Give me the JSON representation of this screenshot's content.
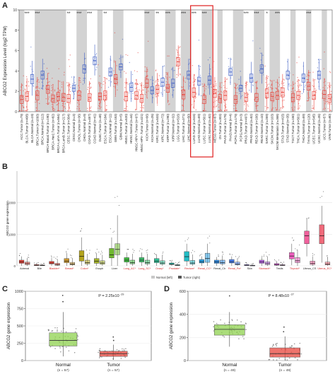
{
  "panels": {
    "A": "A",
    "B": "B",
    "C": "C",
    "D": "D"
  },
  "colors": {
    "tumor": "#e8453c",
    "normal": "#3f5fc4",
    "stripe": "#d3d3d3",
    "ggreen": "#8fd14f"
  },
  "chart_data": [
    {
      "id": "A",
      "type": "box",
      "ylabel": "ABCG2 Expression Level (log2 TPM)",
      "ylim": [
        0,
        10
      ],
      "yticks": [
        "0",
        "2",
        "4",
        "6",
        "8",
        "10"
      ],
      "categories": [
        "ACC.Tumor (n=79)",
        "BLCA.Tumor (n=408)",
        "BLCA.Normal (n=19)",
        "BRCA.Tumor (n=1093)",
        "BRCA.Normal (n=112)",
        "BRCA-Basal.Tumor (n=190)",
        "BRCA-Her2.Tumor (n=82)",
        "BRCA-LumA.Tumor (n=564)",
        "BRCA-LumB.Tumor (n=217)",
        "CESC.Tumor (n=304)",
        "CESC.Normal (n=3)",
        "CHOL.Tumor (n=36)",
        "CHOL.Normal (n=9)",
        "COAD.Tumor (n=457)",
        "COAD.Normal (n=41)",
        "DLBC.Tumor (n=48)",
        "ESCA.Tumor (n=184)",
        "ESCA.Normal (n=11)",
        "GBM.Tumor (n=153)",
        "GBM.Normal (n=5)",
        "HNSC.Tumor (n=520)",
        "HNSC.Normal (n=44)",
        "HNSC-HPV+.Tumor (n=97)",
        "HNSC-HPV-.Tumor (n=421)",
        "KICH.Tumor (n=66)",
        "KICH.Normal (n=25)",
        "KIRC.Tumor (n=533)",
        "KIRC.Normal (n=72)",
        "KIRP.Tumor (n=290)",
        "KIRP.Normal (n=32)",
        "LGG.Tumor (n=516)",
        "LIHC.Tumor (n=371)",
        "LIHC.Normal (n=50)",
        "LUAD.Tumor (n=515)",
        "LUAD.Normal (n=59)",
        "LUSC.Tumor (n=501)",
        "LUSC.Normal (n=52)",
        "MESO.Tumor (n=87)",
        "OV.Tumor (n=303)",
        "PAAD.Tumor (n=178)",
        "PAAD.Normal (n=4)",
        "PCPG.Tumor (n=179)",
        "PCPG.Normal (n=3)",
        "PRAD.Tumor (n=497)",
        "PRAD.Normal (n=52)",
        "READ.Tumor (n=166)",
        "READ.Normal (n=10)",
        "SARC.Tumor (n=259)",
        "SKCM.Tumor (n=103)",
        "SKCM.Metastasis (n=368)",
        "STAD.Tumor (n=415)",
        "STAD.Normal (n=35)",
        "TGCT.Tumor (n=150)",
        "THCA.Tumor (n=501)",
        "THCA.Normal (n=59)",
        "THYM.Tumor (n=120)",
        "UCEC.Tumor (n=545)",
        "UCEC.Normal (n=35)",
        "UCS.Tumor (n=57)",
        "UVM.Tumor (n=80)"
      ],
      "groups": [
        "tumor",
        "tumor",
        "normal",
        "tumor",
        "normal",
        "tumor",
        "tumor",
        "tumor",
        "tumor",
        "tumor",
        "normal",
        "tumor",
        "normal",
        "tumor",
        "normal",
        "tumor",
        "tumor",
        "normal",
        "tumor",
        "normal",
        "tumor",
        "normal",
        "tumor",
        "tumor",
        "tumor",
        "normal",
        "tumor",
        "normal",
        "tumor",
        "normal",
        "tumor",
        "tumor",
        "normal",
        "tumor",
        "normal",
        "tumor",
        "normal",
        "tumor",
        "tumor",
        "tumor",
        "normal",
        "tumor",
        "normal",
        "tumor",
        "normal",
        "tumor",
        "normal",
        "tumor",
        "tumor",
        "tumor",
        "tumor",
        "normal",
        "tumor",
        "tumor",
        "normal",
        "tumor",
        "tumor",
        "normal",
        "tumor",
        "tumor"
      ],
      "medians": [
        1.2,
        1.5,
        3.2,
        1.6,
        3.6,
        2.2,
        1.3,
        1.5,
        1.4,
        1.3,
        2.3,
        1.6,
        4.2,
        1.4,
        5.0,
        1.5,
        1.6,
        3.9,
        3.2,
        4.4,
        1.5,
        2.4,
        1.6,
        1.3,
        2.8,
        2.1,
        2.2,
        2.9,
        2.3,
        2.8,
        4.9,
        1.7,
        3.6,
        1.9,
        3.0,
        1.2,
        3.1,
        1.8,
        1.3,
        1.6,
        3.9,
        1.2,
        2.3,
        1.4,
        3.3,
        1.4,
        4.2,
        1.8,
        1.5,
        1.6,
        1.9,
        3.6,
        1.4,
        1.6,
        3.3,
        2.5,
        1.6,
        3.6,
        1.7,
        1.3
      ],
      "iqr": [
        0.8,
        0.9,
        0.9,
        0.9,
        0.8,
        0.8,
        0.7,
        0.8,
        0.8,
        0.8,
        0.6,
        0.9,
        0.8,
        0.8,
        0.8,
        0.7,
        0.9,
        0.8,
        0.9,
        0.6,
        0.9,
        0.8,
        0.8,
        0.8,
        0.8,
        0.7,
        0.8,
        0.8,
        0.8,
        0.8,
        0.8,
        0.9,
        0.8,
        0.9,
        0.8,
        0.8,
        0.8,
        0.8,
        0.8,
        0.9,
        0.7,
        0.8,
        0.6,
        0.8,
        0.8,
        0.8,
        0.8,
        0.9,
        0.8,
        0.8,
        0.9,
        0.8,
        0.8,
        0.8,
        0.8,
        0.8,
        0.8,
        0.8,
        0.8,
        0.8
      ],
      "significance": [
        "",
        "***",
        "",
        "***",
        "",
        "",
        "",
        "",
        "",
        "**",
        "",
        "***",
        "",
        "***",
        "",
        "",
        "**",
        "",
        "",
        "",
        "",
        "",
        "",
        "",
        "***",
        "",
        "**",
        "",
        "***",
        "",
        "",
        "***",
        "",
        "***",
        "",
        "***",
        "",
        "",
        "",
        "",
        "",
        "",
        "",
        "***",
        "",
        "***",
        "",
        "*",
        "",
        "***",
        "",
        "",
        "",
        "",
        "",
        "***",
        "",
        "",
        "",
        ""
      ],
      "highlight_categories": [
        "LUAD.Tumor (n=515)",
        "LUAD.Normal (n=59)",
        "LUSC.Tumor (n=501)",
        "LUSC.Normal (n=52)"
      ]
    },
    {
      "id": "B",
      "type": "box",
      "ylabel": "ABCG2 gene expression",
      "yticks": [
        "0",
        "1000",
        "2000"
      ],
      "ylim": [
        0,
        3000
      ],
      "legend": [
        "Normal (left)",
        "Tumor (right)"
      ],
      "legend_placement": "bottom",
      "categories": [
        "Adrenal",
        "Bile",
        "Bladder*",
        "Breast*",
        "Colon*",
        "Esoph",
        "Liver",
        "Lung_AC*",
        "Lung_SC*",
        "Ovary*",
        "Prostate*",
        "Rectum*",
        "Renal_CC*",
        "Renal_Ch",
        "Renal_Pa*",
        "Skin",
        "Stomach*",
        "Testis",
        "Thyroid*",
        "Uterus_CS",
        "Uterus_EC*"
      ],
      "red_labels": [
        false,
        false,
        true,
        true,
        true,
        false,
        false,
        true,
        true,
        true,
        true,
        true,
        true,
        false,
        true,
        false,
        true,
        false,
        true,
        false,
        true
      ],
      "colors": [
        "#e8453c",
        "#e8453c",
        "#e8453c",
        "#c9952e",
        "#b2a31d",
        "#a4b32a",
        "#6fb82f",
        "#3fbb3f",
        "#3dbb6a",
        "#2fbf95",
        "#27c0b0",
        "#23bcc4",
        "#2a9ee0",
        "#2f8ce6",
        "#4a7eee",
        "#8d6fee",
        "#b966e6",
        "#d85ed6",
        "#ee5fbe",
        "#f0609c",
        "#f06a7a"
      ],
      "normal_medians": [
        120,
        20,
        90,
        150,
        300,
        150,
        350,
        180,
        180,
        150,
        60,
        290,
        130,
        120,
        130,
        20,
        120,
        40,
        310,
        950,
        950
      ],
      "normal_q1": [
        80,
        10,
        60,
        100,
        150,
        80,
        250,
        120,
        120,
        100,
        40,
        150,
        90,
        80,
        90,
        10,
        80,
        20,
        220,
        700,
        700
      ],
      "normal_q3": [
        180,
        40,
        140,
        230,
        480,
        230,
        550,
        260,
        260,
        230,
        90,
        450,
        200,
        180,
        200,
        40,
        180,
        70,
        420,
        1100,
        1300
      ],
      "normal_whisk_hi": [
        300,
        80,
        250,
        400,
        900,
        400,
        900,
        420,
        420,
        350,
        150,
        700,
        300,
        280,
        300,
        80,
        280,
        150,
        700,
        1500,
        1900
      ],
      "tumor_medians": [
        70,
        15,
        40,
        60,
        100,
        90,
        520,
        100,
        100,
        90,
        20,
        90,
        230,
        100,
        60,
        10,
        70,
        20,
        160,
        80,
        60
      ],
      "tumor_q1": [
        40,
        8,
        20,
        30,
        60,
        50,
        350,
        60,
        60,
        50,
        10,
        50,
        110,
        60,
        30,
        5,
        40,
        10,
        100,
        40,
        30
      ],
      "tumor_q3": [
        120,
        30,
        80,
        110,
        180,
        160,
        700,
        180,
        180,
        160,
        40,
        170,
        400,
        180,
        120,
        20,
        130,
        40,
        260,
        150,
        120
      ],
      "tumor_whisk_hi": [
        250,
        60,
        200,
        250,
        380,
        350,
        1600,
        380,
        380,
        330,
        90,
        360,
        700,
        330,
        250,
        50,
        300,
        90,
        500,
        300,
        260
      ]
    },
    {
      "id": "C",
      "type": "box",
      "ylabel": "ABCG2 gene expression",
      "ylim": [
        0,
        1000
      ],
      "yticks": [
        "0",
        "250",
        "500",
        "750",
        "1000"
      ],
      "categories": [
        "Normal",
        "Tumor"
      ],
      "n_labels": [
        "(n = 57)",
        "(n = 57)"
      ],
      "pvalue_text": "P = 2.25x10",
      "pvalue_exp": "-29",
      "box": [
        {
          "q1": 210,
          "median": 290,
          "q3": 400,
          "whisk_lo": 60,
          "whisk_hi": 700,
          "outliers": [
            850,
            940
          ],
          "color": "#8fd14f"
        },
        {
          "q1": 60,
          "median": 100,
          "q3": 135,
          "whisk_lo": 10,
          "whisk_hi": 230,
          "outliers": [
            290,
            340
          ],
          "color": "#e8453c"
        }
      ]
    },
    {
      "id": "D",
      "type": "box",
      "ylabel": "ABCG2 gene expression",
      "ylim": [
        0,
        600
      ],
      "yticks": [
        "0",
        "200",
        "400",
        "600"
      ],
      "categories": [
        "Normal",
        "Tumor"
      ],
      "n_labels": [
        "(n = 49)",
        "(n = 49)"
      ],
      "pvalue_text": "P = 8.48x10",
      "pvalue_exp": "-27",
      "box": [
        {
          "q1": 220,
          "median": 270,
          "q3": 310,
          "whisk_lo": 120,
          "whisk_hi": 420,
          "outliers": [
            560
          ],
          "color": "#8fd14f"
        },
        {
          "q1": 30,
          "median": 60,
          "q3": 110,
          "whisk_lo": 5,
          "whisk_hi": 210,
          "outliers": [
            250,
            290
          ],
          "color": "#e8453c"
        }
      ]
    }
  ]
}
